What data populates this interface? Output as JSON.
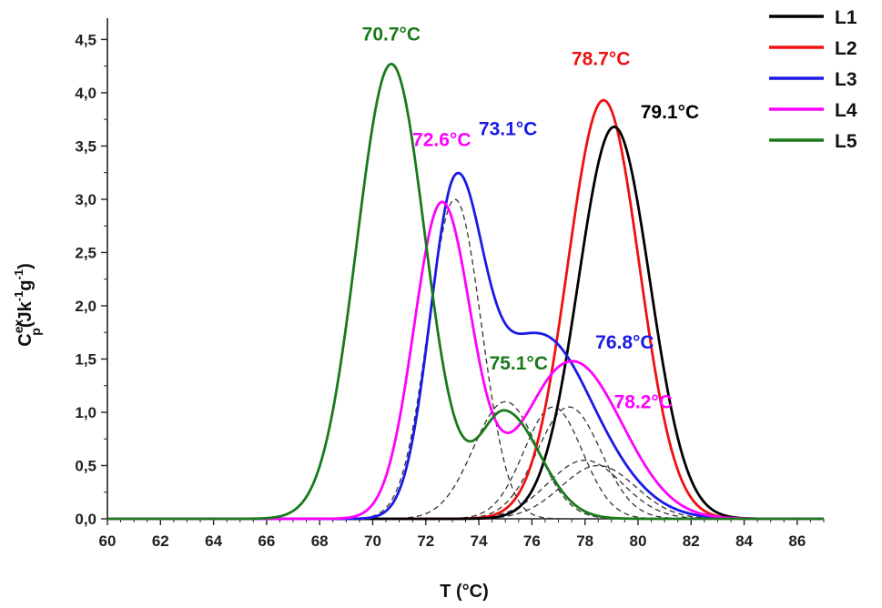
{
  "chart_data": {
    "type": "line",
    "title": "",
    "xlabel": "T (°C)",
    "ylabel_main": "C",
    "ylabel_sup": "ex",
    "ylabel_sub": "p",
    "ylabel_rest": "(Jk",
    "ylabel_sup2": "-1",
    "ylabel_mid": "g",
    "ylabel_sup3": "-1",
    "ylabel_end": ")",
    "xlim": [
      60,
      87
    ],
    "ylim": [
      0,
      4.7
    ],
    "xticks": [
      "60",
      "62",
      "64",
      "66",
      "68",
      "70",
      "72",
      "74",
      "76",
      "78",
      "80",
      "82",
      "84",
      "86"
    ],
    "yticks": [
      "0,0",
      "0,5",
      "1,0",
      "1,5",
      "2,0",
      "2,5",
      "3,0",
      "3,5",
      "4,0",
      "4,5"
    ],
    "legend_position": "top-right",
    "grid": false,
    "series": [
      {
        "name": "L1",
        "color": "#000000",
        "components": [
          {
            "a": 3.68,
            "mu": 79.1,
            "sl": 1.35,
            "sr": 1.35
          }
        ]
      },
      {
        "name": "L2",
        "color": "#ee1111",
        "components": [
          {
            "a": 3.93,
            "mu": 78.7,
            "sl": 1.35,
            "sr": 1.35
          }
        ]
      },
      {
        "name": "L3",
        "color": "#1a1ae6",
        "components": [
          {
            "a": 3.0,
            "mu": 73.1,
            "sl": 0.95,
            "sr": 1.05
          },
          {
            "a": 1.45,
            "mu": 76.0,
            "sl": 1.5,
            "sr": 1.7
          },
          {
            "a": 0.5,
            "mu": 78.0,
            "sl": 1.6,
            "sr": 1.8
          }
        ]
      },
      {
        "name": "L4",
        "color": "#ff00ff",
        "components": [
          {
            "a": 2.95,
            "mu": 72.6,
            "sl": 1.05,
            "sr": 1.1
          },
          {
            "a": 1.05,
            "mu": 77.0,
            "sl": 1.6,
            "sr": 1.8
          },
          {
            "a": 0.55,
            "mu": 78.4,
            "sl": 1.6,
            "sr": 1.7
          }
        ]
      },
      {
        "name": "L5",
        "color": "#1a7a1a",
        "components": [
          {
            "a": 4.27,
            "mu": 70.7,
            "sl": 1.3,
            "sr": 1.3
          },
          {
            "a": 1.0,
            "mu": 75.0,
            "sl": 1.0,
            "sr": 1.3
          }
        ]
      }
    ],
    "deconvolution_components": [
      {
        "a": 3.0,
        "mu": 73.1,
        "s": 1.0
      },
      {
        "a": 1.1,
        "mu": 75.0,
        "s": 1.2
      },
      {
        "a": 1.05,
        "mu": 76.8,
        "s": 1.1
      },
      {
        "a": 1.05,
        "mu": 77.4,
        "s": 1.2
      },
      {
        "a": 0.55,
        "mu": 78.0,
        "s": 1.4
      },
      {
        "a": 0.5,
        "mu": 78.5,
        "s": 1.4
      }
    ],
    "annotations": [
      {
        "text": "70.7°C",
        "x": 70.7,
        "y": 4.49,
        "color": "#1a7a1a"
      },
      {
        "text": "72.6°C",
        "x": 72.6,
        "y": 3.5,
        "color": "#ff00ff"
      },
      {
        "text": "73.1°C",
        "x": 75.1,
        "y": 3.6,
        "color": "#1a1ae6"
      },
      {
        "text": "78.7°C",
        "x": 78.6,
        "y": 4.26,
        "color": "#ee1111"
      },
      {
        "text": "79.1°C",
        "x": 81.2,
        "y": 3.76,
        "color": "#000000"
      },
      {
        "text": "76.8°C",
        "x": 79.5,
        "y": 1.6,
        "color": "#1a1ae6"
      },
      {
        "text": "75.1°C",
        "x": 75.5,
        "y": 1.4,
        "color": "#1a7a1a"
      },
      {
        "text": "78.2°C",
        "x": 80.2,
        "y": 1.04,
        "color": "#ff00ff"
      }
    ]
  }
}
